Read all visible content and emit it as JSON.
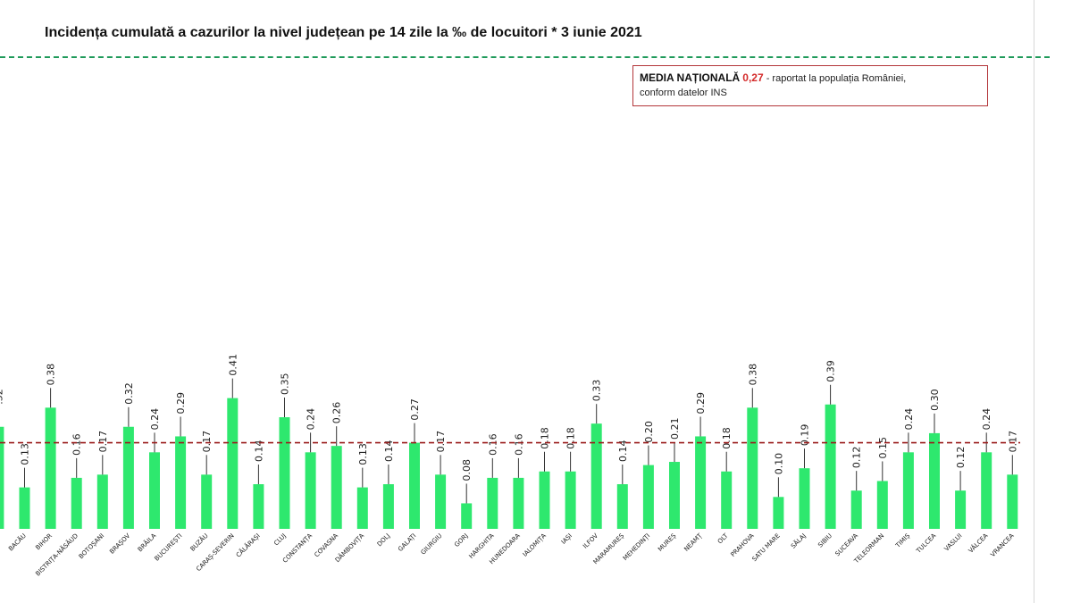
{
  "title": "Incidența cumulată a cazurilor la nivel județean pe 14 zile la ‰ de locuitori *  3 iunie 2021",
  "note": {
    "label": "MEDIA NAȚIONALĂ",
    "value": "0,27",
    "text1": "- raportat la populația României,",
    "text2": "conform datelor INS"
  },
  "colors": {
    "bar": "#2ee86e",
    "reference_line": "#9b1c1c",
    "highlight": "#d42a2a",
    "top_rule": "#1f9a5a"
  },
  "chart_data": {
    "type": "bar",
    "categories": [
      "",
      "BACĂU",
      "BIHOR",
      "BISTRIȚA-NĂSĂUD",
      "BOTOȘANI",
      "BRAȘOV",
      "BRĂILA",
      "BUCUREȘTI",
      "BUZĂU",
      "CARAȘ-SEVERIN",
      "CĂLĂRAȘI",
      "CLUJ",
      "CONSTANȚA",
      "COVASNA",
      "DÂMBOVIȚA",
      "DOLJ",
      "GALAȚI",
      "GIURGIU",
      "GORJ",
      "HARGHITA",
      "HUNEDOARA",
      "IALOMIȚA",
      "IAȘI",
      "ILFOV",
      "MARAMUREȘ",
      "MEHEDINȚI",
      "MUREȘ",
      "NEAMȚ",
      "OLT",
      "PRAHOVA",
      "SATU MARE",
      "SĂLAJ",
      "SIBIU",
      "SUCEAVA",
      "TELEORMAN",
      "TIMIȘ",
      "TULCEA",
      "VASLUI",
      "VÂLCEA",
      "VRANCEA"
    ],
    "values": [
      0.32,
      0.13,
      0.38,
      0.16,
      0.17,
      0.32,
      0.24,
      0.29,
      0.17,
      0.41,
      0.14,
      0.35,
      0.24,
      0.26,
      0.13,
      0.14,
      0.27,
      0.17,
      0.08,
      0.16,
      0.16,
      0.18,
      0.18,
      0.33,
      0.14,
      0.2,
      0.21,
      0.29,
      0.18,
      0.38,
      0.1,
      0.19,
      0.39,
      0.12,
      0.15,
      0.24,
      0.3,
      0.12,
      0.24,
      0.17
    ],
    "value_labels": [
      ".32",
      "0.13",
      "0.38",
      "0.16",
      "0.17",
      "0.32",
      "0.24",
      "0.29",
      "0.17",
      "0.41",
      "0.14",
      "0.35",
      "0.24",
      "0.26",
      "0.13",
      "0.14",
      "0.27",
      "0.17",
      "0.08",
      "0.16",
      "0.16",
      "0.18",
      "0.18",
      "0.33",
      "0.14",
      "0.20",
      "0.21",
      "0.29",
      "0.18",
      "0.38",
      "0.10",
      "0.19",
      "0.39",
      "0.12",
      "0.15",
      "0.24",
      "0.30",
      "0.12",
      "0.24",
      "0.17"
    ],
    "reference_line": 0.27,
    "ylim": [
      0,
      0.45
    ],
    "grid": false,
    "legend": "none"
  }
}
